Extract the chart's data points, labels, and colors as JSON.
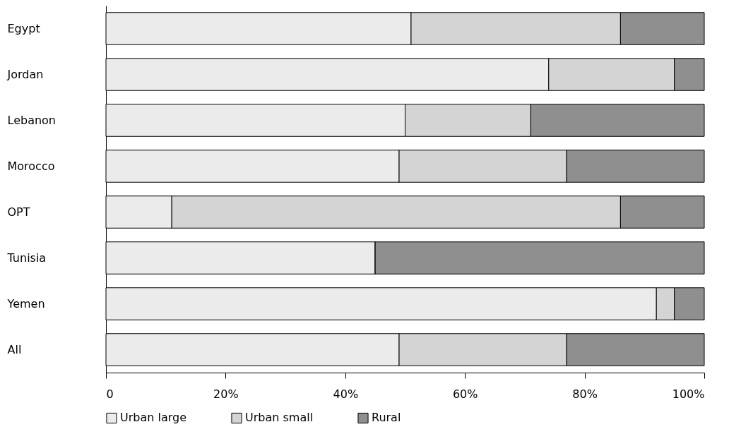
{
  "chart_data": {
    "type": "bar",
    "orientation": "horizontal",
    "stacked": true,
    "categories": [
      "Egypt",
      "Jordan",
      "Lebanon",
      "Morocco",
      "OPT",
      "Tunisia",
      "Yemen",
      "All"
    ],
    "series": [
      {
        "name": "Urban large",
        "color": "#ebebeb",
        "values": [
          51,
          74,
          50,
          49,
          11,
          45,
          92,
          49
        ]
      },
      {
        "name": "Urban small",
        "color": "#d4d4d4",
        "values": [
          35,
          21,
          21,
          28,
          75,
          0,
          3,
          28
        ]
      },
      {
        "name": "Rural",
        "color": "#8f8f8f",
        "values": [
          14,
          5,
          29,
          23,
          14,
          55,
          5,
          23
        ]
      }
    ],
    "xlim": [
      0,
      100
    ],
    "xticks": [
      0,
      {
        "value": 20,
        "label": "20%"
      },
      {
        "value": 40,
        "label": "40%"
      },
      {
        "value": 60,
        "label": "60%"
      },
      {
        "value": 80,
        "label": "80%"
      },
      {
        "value": 100,
        "label": "100%"
      }
    ],
    "grid": false,
    "legend": "bottom"
  }
}
